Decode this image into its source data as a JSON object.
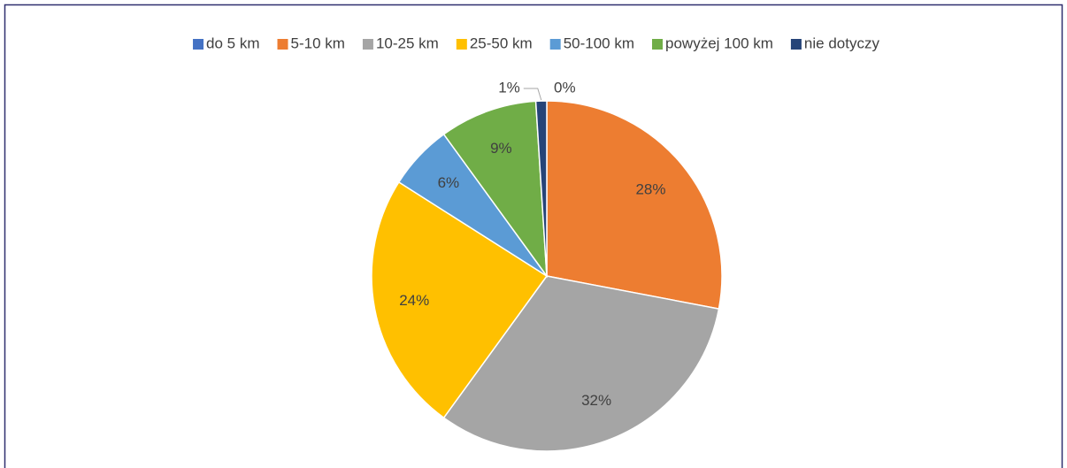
{
  "chart_data": {
    "type": "pie",
    "categories": [
      "do 5 km",
      "5-10 km",
      "10-25 km",
      "25-50 km",
      "50-100 km",
      "powyżej 100 km",
      "nie dotyczy"
    ],
    "values": [
      0,
      28,
      32,
      24,
      6,
      9,
      1
    ],
    "value_labels": [
      "0%",
      "28%",
      "32%",
      "24%",
      "6%",
      "9%",
      "1%"
    ],
    "colors": [
      "#4472c4",
      "#ed7d31",
      "#a5a5a5",
      "#ffc000",
      "#5b9bd5",
      "#70ad47",
      "#264478"
    ],
    "legend": "top"
  }
}
